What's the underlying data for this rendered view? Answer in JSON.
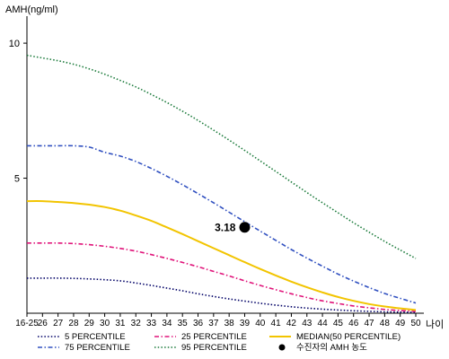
{
  "chart_data": {
    "type": "line",
    "ylabel": "AMH(ng/ml)",
    "xlabel": "나이",
    "ylim": [
      0,
      11
    ],
    "yticks": [
      5,
      10
    ],
    "x": [
      25,
      26,
      27,
      28,
      29,
      30,
      31,
      32,
      33,
      34,
      35,
      36,
      37,
      38,
      39,
      40,
      41,
      42,
      43,
      44,
      45,
      46,
      47,
      48,
      49,
      50
    ],
    "xtick_labels": [
      "16-25",
      "26",
      "27",
      "28",
      "29",
      "30",
      "31",
      "32",
      "33",
      "34",
      "35",
      "36",
      "37",
      "38",
      "39",
      "40",
      "41",
      "42",
      "43",
      "44",
      "45",
      "46",
      "47",
      "48",
      "49",
      "50"
    ],
    "grid": false,
    "legend_position": "bottom",
    "series": [
      {
        "name": "5 PERCENTILE",
        "color": "#000066",
        "dash": "dotted",
        "values": [
          1.3,
          1.3,
          1.3,
          1.29,
          1.27,
          1.24,
          1.2,
          1.12,
          1.03,
          0.93,
          0.83,
          0.72,
          0.62,
          0.53,
          0.45,
          0.37,
          0.3,
          0.24,
          0.19,
          0.15,
          0.12,
          0.09,
          0.07,
          0.05,
          0.04,
          0.03
        ]
      },
      {
        "name": "25 PERCENTILE",
        "color": "#e0147a",
        "dash": "dashdot",
        "values": [
          2.6,
          2.6,
          2.6,
          2.58,
          2.54,
          2.48,
          2.4,
          2.3,
          2.17,
          2.03,
          1.88,
          1.72,
          1.55,
          1.38,
          1.2,
          1.03,
          0.87,
          0.72,
          0.58,
          0.46,
          0.36,
          0.27,
          0.2,
          0.14,
          0.1,
          0.07
        ]
      },
      {
        "name": "MEDIAN(50 PERCENTILE)",
        "color": "#f2c400",
        "dash": "solid",
        "values": [
          4.15,
          4.15,
          4.12,
          4.08,
          4.02,
          3.93,
          3.8,
          3.62,
          3.42,
          3.18,
          2.93,
          2.67,
          2.41,
          2.15,
          1.89,
          1.64,
          1.4,
          1.17,
          0.96,
          0.77,
          0.6,
          0.46,
          0.34,
          0.25,
          0.18,
          0.12
        ]
      },
      {
        "name": "75 PERCENTILE",
        "color": "#3050c0",
        "dash": "dashdot",
        "values": [
          6.2,
          6.2,
          6.2,
          6.2,
          6.15,
          5.96,
          5.82,
          5.62,
          5.36,
          5.07,
          4.76,
          4.43,
          4.09,
          3.74,
          3.39,
          3.04,
          2.7,
          2.36,
          2.04,
          1.74,
          1.45,
          1.19,
          0.95,
          0.73,
          0.55,
          0.38
        ]
      },
      {
        "name": "95 PERCENTILE",
        "color": "#1a7a3a",
        "dash": "dotted",
        "values": [
          9.55,
          9.45,
          9.35,
          9.22,
          9.05,
          8.85,
          8.62,
          8.38,
          8.1,
          7.8,
          7.48,
          7.14,
          6.78,
          6.41,
          6.03,
          5.64,
          5.25,
          4.86,
          4.47,
          4.09,
          3.72,
          3.35,
          3.0,
          2.66,
          2.34,
          2.03
        ]
      }
    ],
    "marker": {
      "name": "수진자의 AMH 농도",
      "x": 39,
      "y": 3.18,
      "label": "3.18",
      "color": "#000000"
    }
  }
}
